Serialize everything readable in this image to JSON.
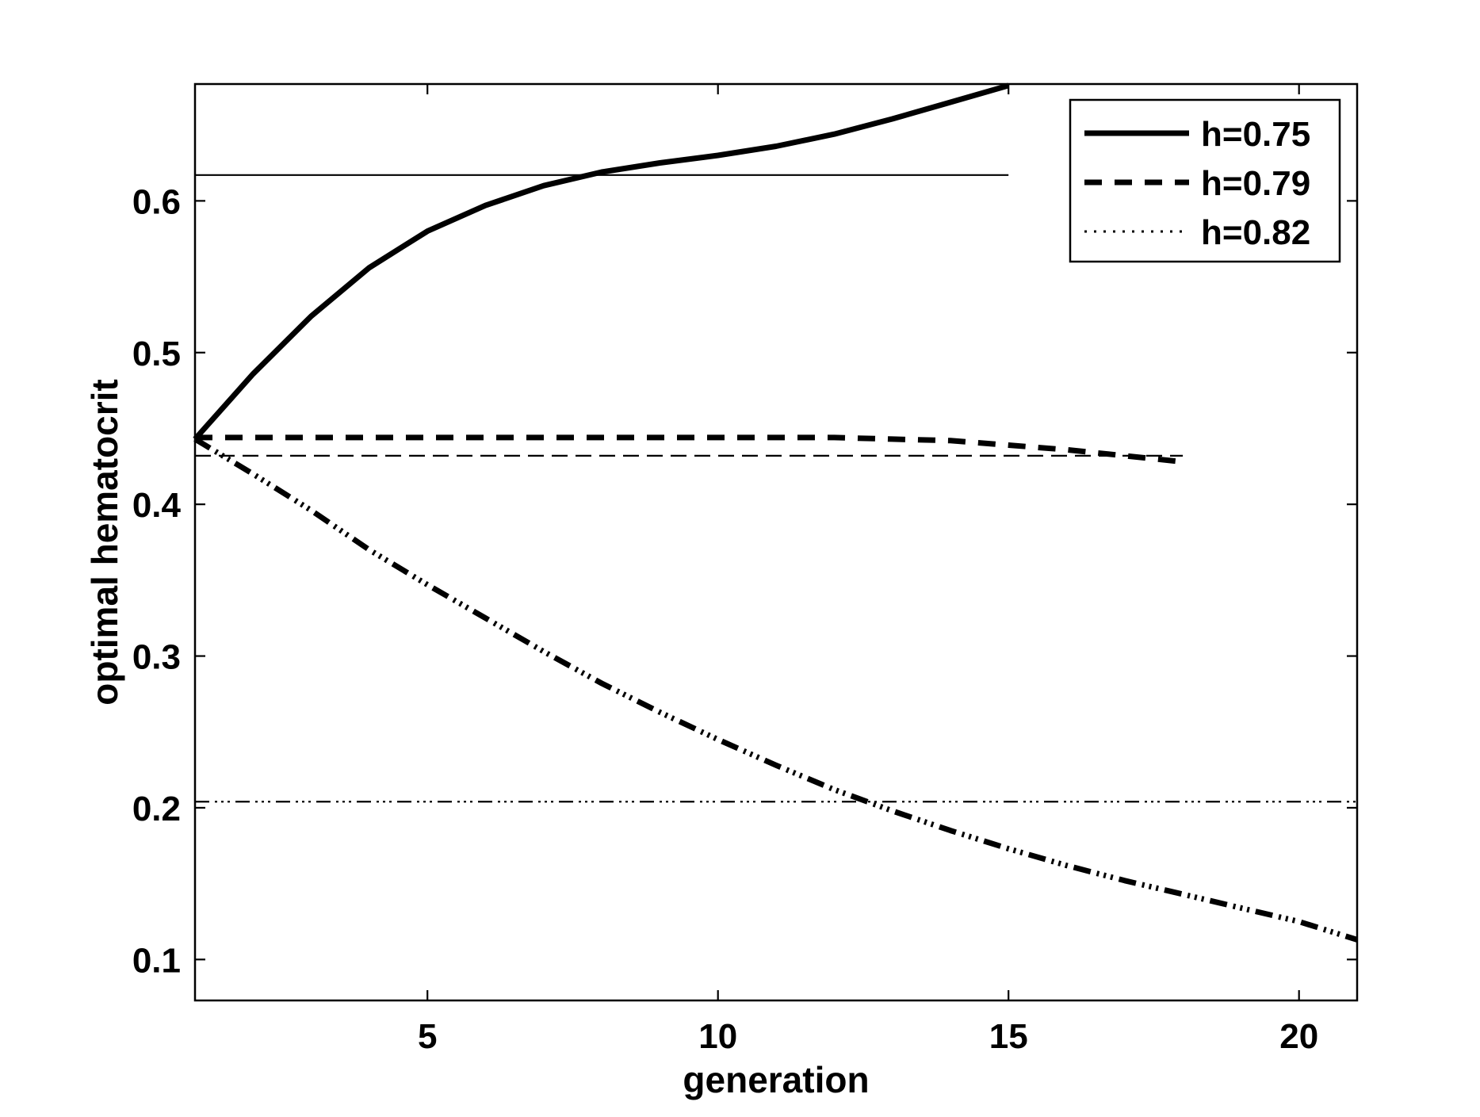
{
  "chart_data": {
    "type": "line",
    "title": "",
    "xlabel": "generation",
    "ylabel": "optimal hematocrit",
    "xlim": [
      1,
      21
    ],
    "ylim": [
      0.073,
      0.677
    ],
    "xticks": [
      5,
      10,
      15,
      20
    ],
    "yticks": [
      0.1,
      0.2,
      0.3,
      0.4,
      0.5,
      0.6
    ],
    "xtick_labels": [
      "5",
      "10",
      "15",
      "20"
    ],
    "ytick_labels": [
      "0.1",
      "0.2",
      "0.3",
      "0.4",
      "0.5",
      "0.6"
    ],
    "grid": false,
    "legend_position": "top-right",
    "legend": [
      {
        "label": "h=0.75",
        "style": "solid"
      },
      {
        "label": "h=0.79",
        "style": "dashed"
      },
      {
        "label": "h=0.82",
        "style": "dotted"
      }
    ],
    "series": [
      {
        "style": "solid",
        "x": [
          1,
          2,
          3,
          4,
          5,
          6,
          7,
          8,
          9,
          10,
          11,
          12,
          13,
          14,
          15
        ],
        "y": [
          0.443,
          0.486,
          0.524,
          0.556,
          0.58,
          0.597,
          0.61,
          0.619,
          0.625,
          0.63,
          0.636,
          0.644,
          0.654,
          0.665,
          0.676
        ]
      },
      {
        "style": "dashed",
        "x": [
          1,
          2,
          3,
          4,
          5,
          6,
          7,
          8,
          9,
          10,
          11,
          12,
          13,
          14,
          15,
          16,
          17,
          18
        ],
        "y": [
          0.444,
          0.444,
          0.444,
          0.444,
          0.444,
          0.444,
          0.444,
          0.444,
          0.444,
          0.444,
          0.444,
          0.444,
          0.443,
          0.442,
          0.439,
          0.436,
          0.432,
          0.428
        ]
      },
      {
        "style": "dashdot",
        "x": [
          1,
          2,
          3,
          4,
          5,
          6,
          7,
          8,
          9,
          10,
          11,
          12,
          13,
          14,
          15,
          16,
          17,
          18,
          19,
          20,
          21
        ],
        "y": [
          0.443,
          0.42,
          0.396,
          0.37,
          0.347,
          0.325,
          0.303,
          0.282,
          0.263,
          0.245,
          0.228,
          0.212,
          0.198,
          0.185,
          0.173,
          0.162,
          0.152,
          0.143,
          0.134,
          0.125,
          0.113
        ]
      }
    ],
    "reference_lines": [
      {
        "style": "solid",
        "y": 0.617,
        "x": [
          1,
          15
        ]
      },
      {
        "style": "dashed",
        "y": 0.432,
        "x": [
          1,
          18
        ]
      },
      {
        "style": "dashdot",
        "y": 0.204,
        "x": [
          1,
          21
        ]
      }
    ]
  }
}
